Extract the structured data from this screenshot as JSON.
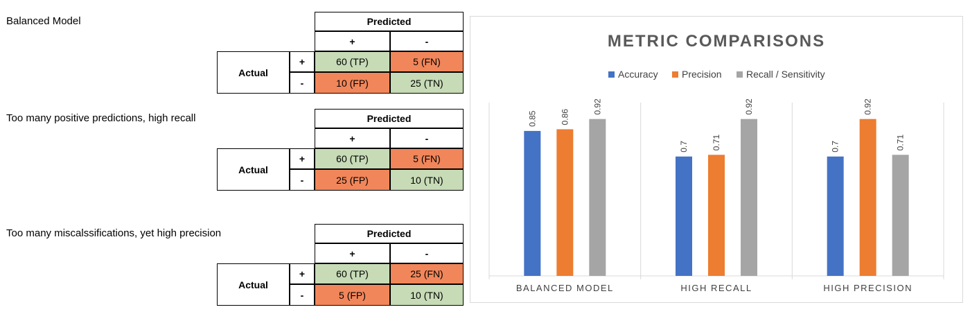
{
  "blocks": [
    {
      "title": "Balanced Model",
      "predicted_label": "Predicted",
      "actual_label": "Actual",
      "plus": "+",
      "minus": "-",
      "tp": "60 (TP)",
      "fn": "5 (FN)",
      "fp": "10 (FP)",
      "tn": "25 (TN)"
    },
    {
      "title": "Too many positive predictions, high recall",
      "predicted_label": "Predicted",
      "actual_label": "Actual",
      "plus": "+",
      "minus": "-",
      "tp": "60 (TP)",
      "fn": "5 (FN)",
      "fp": "25 (FP)",
      "tn": "10 (TN)"
    },
    {
      "title": "Too many miscalssifications, yet high precision",
      "predicted_label": "Predicted",
      "actual_label": "Actual",
      "plus": "+",
      "minus": "-",
      "tp": "60 (TP)",
      "fn": "25 (FN)",
      "fp": "5 (FP)",
      "tn": "10 (TN)"
    }
  ],
  "chart_data": {
    "type": "bar",
    "title": "METRIC COMPARISONS",
    "categories": [
      "BALANCED MODEL",
      "HIGH RECALL",
      "HIGH PRECISION"
    ],
    "series": [
      {
        "name": "Accuracy",
        "color": "#4472c4",
        "values": [
          0.85,
          0.7,
          0.7
        ],
        "labels": [
          "0.85",
          "0.7",
          "0.7"
        ]
      },
      {
        "name": "Precision",
        "color": "#ed7d31",
        "values": [
          0.86,
          0.71,
          0.92
        ],
        "labels": [
          "0.86",
          "0.71",
          "0.92"
        ]
      },
      {
        "name": "Recall / Sensitivity",
        "color": "#a5a5a5",
        "values": [
          0.92,
          0.92,
          0.71
        ],
        "labels": [
          "0.92",
          "0.92",
          "0.71"
        ]
      }
    ],
    "ylim": [
      0,
      1.0
    ],
    "legend_position": "top",
    "grid": false,
    "category_separators": true
  }
}
